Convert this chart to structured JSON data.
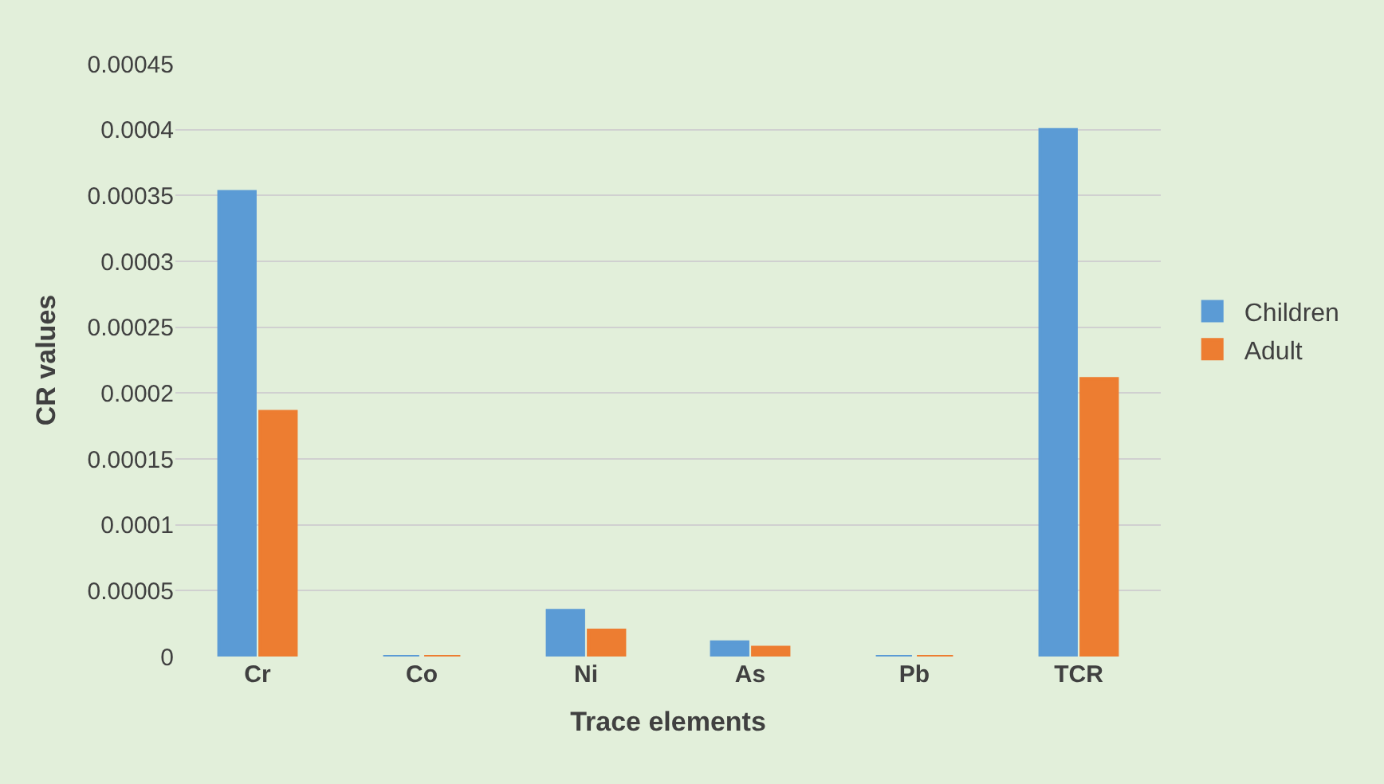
{
  "chart_data": {
    "type": "bar",
    "xlabel": "Trace elements",
    "ylabel": "CR values",
    "categories": [
      "Cr",
      "Co",
      "Ni",
      "As",
      "Pb",
      "TCR"
    ],
    "series": [
      {
        "name": "Children",
        "color": "#5b9bd5",
        "values": [
          0.000353,
          0,
          3.5e-05,
          1.1e-05,
          0,
          0.0004
        ]
      },
      {
        "name": "Adult",
        "color": "#ed7d31",
        "values": [
          0.000186,
          0,
          2e-05,
          7e-06,
          0,
          0.000211
        ]
      }
    ],
    "ylim": [
      0,
      0.00045
    ],
    "yticks": [
      0,
      {
        "value": 5e-05,
        "label": "0.00005"
      },
      0.0001,
      0.00015,
      0.0002,
      0.00025,
      0.0003,
      0.00035,
      0.0004,
      0.00045
    ],
    "grid": "y",
    "legend": "right"
  }
}
